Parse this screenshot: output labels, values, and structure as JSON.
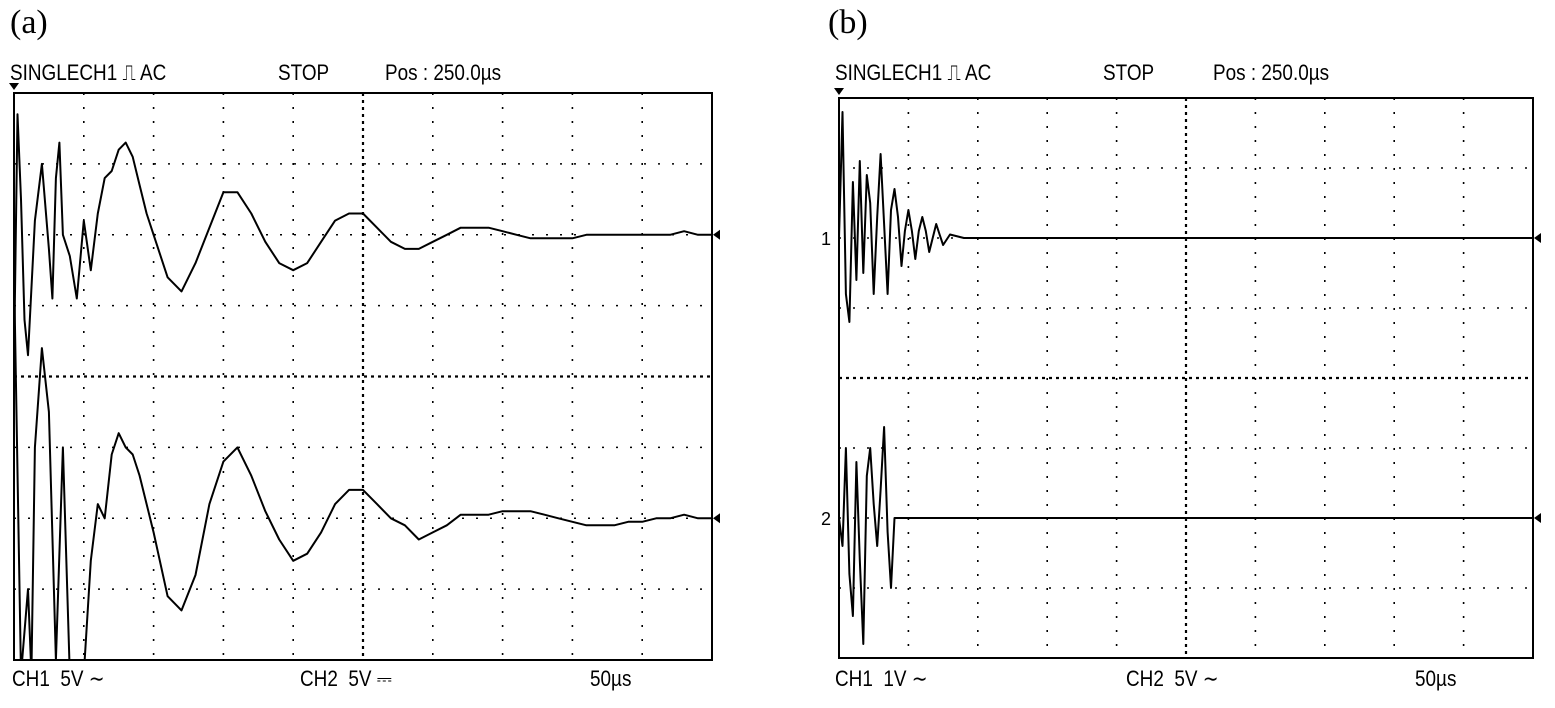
{
  "panels": [
    {
      "label": "(a)",
      "header": {
        "mode": "SINGLECH1 ⎍ AC",
        "state": "STOP",
        "pos": "Pos : 250.0µs"
      },
      "footer": {
        "ch1": "CH1  5V ∼",
        "ch2": "CH2  5V ⎓",
        "time": "50µs"
      }
    },
    {
      "label": "(b)",
      "header": {
        "mode": "SINGLECH1 ⎍ AC",
        "state": "STOP",
        "pos": "Pos : 250.0µs"
      },
      "footer": {
        "ch1": "CH1  1V ∼",
        "ch2": "CH2  5V ∼",
        "time": "50µs"
      },
      "markers": {
        "ch1": "1",
        "ch2": "2"
      }
    }
  ],
  "chart_data": [
    {
      "type": "line",
      "panel": "(a)",
      "xlabel": "",
      "ylabel": "",
      "xlim": [
        0,
        10
      ],
      "ylim": [
        -4,
        4
      ],
      "grid": true,
      "series": [
        {
          "name": "CH1",
          "offset": 2,
          "x": [
            0,
            0.05,
            0.1,
            0.15,
            0.2,
            0.3,
            0.4,
            0.5,
            0.55,
            0.6,
            0.65,
            0.7,
            0.8,
            0.9,
            1.0,
            1.1,
            1.2,
            1.3,
            1.4,
            1.5,
            1.6,
            1.7,
            1.8,
            1.9,
            2.0,
            2.2,
            2.4,
            2.6,
            2.8,
            3.0,
            3.2,
            3.4,
            3.6,
            3.8,
            4.0,
            4.2,
            4.4,
            4.6,
            4.8,
            5.0,
            5.2,
            5.4,
            5.6,
            5.8,
            6.0,
            6.2,
            6.4,
            6.6,
            6.8,
            7.0,
            7.2,
            7.4,
            7.6,
            7.8,
            8.0,
            8.2,
            8.4,
            8.6,
            8.8,
            9.0,
            9.2,
            9.4,
            9.6,
            9.8,
            10.0
          ],
          "y": [
            -1.8,
            1.7,
            0.5,
            -1.2,
            -1.7,
            0.2,
            1.0,
            -0.2,
            -0.9,
            0.8,
            1.3,
            0.0,
            -0.3,
            -0.9,
            0.2,
            -0.5,
            0.3,
            0.8,
            0.9,
            1.2,
            1.3,
            1.1,
            0.7,
            0.3,
            0.0,
            -0.6,
            -0.8,
            -0.4,
            0.1,
            0.6,
            0.6,
            0.3,
            -0.1,
            -0.4,
            -0.5,
            -0.4,
            -0.1,
            0.2,
            0.3,
            0.3,
            0.1,
            -0.1,
            -0.2,
            -0.2,
            -0.1,
            0.0,
            0.1,
            0.1,
            0.1,
            0.05,
            0.0,
            -0.05,
            -0.05,
            -0.05,
            -0.05,
            0.0,
            0.0,
            0.0,
            0.0,
            0.0,
            0.0,
            0.0,
            0.05,
            0.0,
            0.0
          ]
        },
        {
          "name": "CH2",
          "offset": -2,
          "x": [
            0,
            0.1,
            0.2,
            0.25,
            0.3,
            0.4,
            0.5,
            0.6,
            0.7,
            0.8,
            0.9,
            1.0,
            1.1,
            1.2,
            1.3,
            1.4,
            1.5,
            1.6,
            1.7,
            1.8,
            2.0,
            2.2,
            2.4,
            2.6,
            2.8,
            3.0,
            3.2,
            3.4,
            3.6,
            3.8,
            4.0,
            4.2,
            4.4,
            4.6,
            4.8,
            5.0,
            5.2,
            5.4,
            5.6,
            5.8,
            6.0,
            6.2,
            6.4,
            6.6,
            6.8,
            7.0,
            7.2,
            7.4,
            7.6,
            7.8,
            8.0,
            8.2,
            8.4,
            8.6,
            8.8,
            9.0,
            9.2,
            9.4,
            9.6,
            9.8,
            10.0
          ],
          "y": [
            3.5,
            -2.2,
            -1.0,
            -2.2,
            1.0,
            2.4,
            1.5,
            -2.0,
            1.0,
            -2.2,
            -2.2,
            -2.2,
            -0.6,
            0.2,
            0.0,
            0.9,
            1.2,
            1.0,
            0.9,
            0.6,
            -0.2,
            -1.1,
            -1.3,
            -0.8,
            0.2,
            0.8,
            1.0,
            0.6,
            0.1,
            -0.3,
            -0.6,
            -0.5,
            -0.2,
            0.2,
            0.4,
            0.4,
            0.2,
            0.0,
            -0.1,
            -0.3,
            -0.2,
            -0.1,
            0.05,
            0.05,
            0.05,
            0.1,
            0.1,
            0.1,
            0.05,
            0.0,
            -0.05,
            -0.1,
            -0.1,
            -0.1,
            -0.05,
            -0.05,
            0.0,
            0.0,
            0.05,
            0.0,
            0.0
          ]
        }
      ]
    },
    {
      "type": "line",
      "panel": "(b)",
      "xlabel": "",
      "ylabel": "",
      "xlim": [
        0,
        10
      ],
      "ylim": [
        -4,
        4
      ],
      "grid": true,
      "series": [
        {
          "name": "CH1",
          "offset": 2,
          "x": [
            0,
            0.05,
            0.1,
            0.15,
            0.2,
            0.25,
            0.3,
            0.35,
            0.4,
            0.45,
            0.5,
            0.55,
            0.6,
            0.65,
            0.7,
            0.75,
            0.8,
            0.85,
            0.9,
            0.95,
            1.0,
            1.05,
            1.1,
            1.15,
            1.2,
            1.25,
            1.3,
            1.35,
            1.4,
            1.45,
            1.5,
            1.6,
            1.8,
            2.0,
            3.0,
            4.0,
            5.0,
            6.0,
            7.0,
            8.0,
            9.0,
            10.0
          ],
          "y": [
            0.0,
            1.8,
            -0.8,
            -1.2,
            0.8,
            -0.6,
            1.1,
            -0.5,
            0.9,
            0.5,
            -0.8,
            0.3,
            1.2,
            0.2,
            -0.8,
            0.4,
            0.7,
            0.3,
            -0.4,
            0.1,
            0.4,
            0.1,
            -0.3,
            0.1,
            0.3,
            0.1,
            -0.2,
            0.0,
            0.2,
            0.05,
            -0.1,
            0.05,
            0.0,
            0.0,
            0.0,
            0.0,
            0.0,
            0.0,
            0.0,
            0.0,
            0.0,
            0.0
          ]
        },
        {
          "name": "CH2",
          "offset": -2,
          "x": [
            0,
            0.05,
            0.1,
            0.15,
            0.2,
            0.25,
            0.3,
            0.35,
            0.4,
            0.45,
            0.5,
            0.55,
            0.6,
            0.65,
            0.7,
            0.75,
            0.8,
            1.0,
            2.0,
            3.0,
            4.0,
            5.0,
            6.0,
            7.0,
            8.0,
            9.0,
            10.0
          ],
          "y": [
            0.0,
            -0.4,
            1.0,
            -0.8,
            -1.4,
            0.8,
            -0.6,
            -1.8,
            0.6,
            1.0,
            0.2,
            -0.4,
            0.4,
            1.3,
            -0.2,
            -1.0,
            0.0,
            0.0,
            0.0,
            0.0,
            0.0,
            0.0,
            0.0,
            0.0,
            0.0,
            0.0,
            0.0
          ]
        }
      ]
    }
  ]
}
